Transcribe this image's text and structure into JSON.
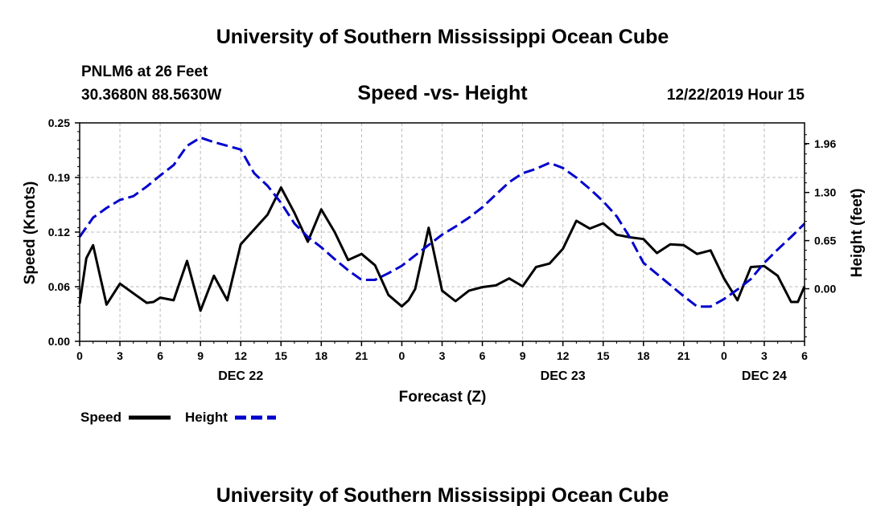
{
  "header": {
    "title": "University of Southern Mississippi Ocean Cube",
    "station": "PNLM6 at 26 Feet",
    "location": "30.3680N 88.5630W",
    "plot_title": "Speed -vs- Height",
    "timestamp": "12/22/2019 Hour 15"
  },
  "footer": {
    "title": "University of Southern Mississippi Ocean Cube"
  },
  "colors": {
    "speed": "#000000",
    "height": "#0000cc",
    "grid": "#bbbbbb"
  },
  "chart_data": {
    "type": "line",
    "title": "Speed -vs- Height",
    "xlabel": "Forecast (Z)",
    "ylabel": "Speed (Knots)",
    "y2label": "Height (feet)",
    "x_range": [
      0,
      54
    ],
    "ylim": [
      0,
      0.25
    ],
    "y2lim": [
      -0.71,
      2.24
    ],
    "x_ticks": [
      0,
      3,
      6,
      9,
      12,
      15,
      18,
      21,
      24,
      27,
      30,
      33,
      36,
      39,
      42,
      45,
      48,
      51,
      54
    ],
    "x_tick_labels": [
      "0",
      "3",
      "6",
      "9",
      "12",
      "15",
      "18",
      "21",
      "0",
      "3",
      "6",
      "9",
      "12",
      "15",
      "18",
      "21",
      "0",
      "3",
      "6"
    ],
    "date_labels": [
      {
        "x": 12,
        "label": "DEC 22"
      },
      {
        "x": 36,
        "label": "DEC 23"
      },
      {
        "x": 51,
        "label": "DEC 24"
      }
    ],
    "y_ticks": [
      0,
      0.0625,
      0.125,
      0.1875,
      0.25
    ],
    "y_tick_labels": [
      "0.00",
      "0.06",
      "0.12",
      "0.19",
      "0.25"
    ],
    "y2_ticks": [
      0.0,
      0.65,
      1.3,
      1.96
    ],
    "y2_tick_labels": [
      "0.00",
      "0.65",
      "1.30",
      "1.96"
    ],
    "grid": true,
    "legend": "bottom-left",
    "series": [
      {
        "name": "Speed",
        "axis": "left",
        "style": "solid",
        "x": [
          0,
          0.5,
          1,
          2,
          3,
          4,
          5,
          5.5,
          6,
          7,
          8,
          9,
          10,
          11,
          12,
          13,
          14,
          15,
          16,
          17,
          18,
          19,
          20,
          21,
          22,
          23,
          24,
          24.5,
          25,
          26,
          27,
          28,
          29,
          30,
          31,
          32,
          33,
          34,
          35,
          36,
          37,
          38,
          39,
          40,
          41,
          42,
          43,
          44,
          45,
          46,
          47,
          48,
          49,
          50,
          51,
          52,
          53,
          53.5,
          54
        ],
        "values": [
          0.043,
          0.095,
          0.11,
          0.042,
          0.066,
          0.055,
          0.044,
          0.045,
          0.05,
          0.047,
          0.092,
          0.035,
          0.075,
          0.047,
          0.111,
          0.128,
          0.145,
          0.176,
          0.147,
          0.114,
          0.151,
          0.125,
          0.093,
          0.1,
          0.087,
          0.053,
          0.04,
          0.047,
          0.06,
          0.13,
          0.058,
          0.046,
          0.058,
          0.062,
          0.064,
          0.072,
          0.063,
          0.085,
          0.089,
          0.106,
          0.138,
          0.129,
          0.135,
          0.122,
          0.119,
          0.117,
          0.101,
          0.111,
          0.11,
          0.1,
          0.104,
          0.072,
          0.047,
          0.085,
          0.086,
          0.075,
          0.045,
          0.045,
          0.063
        ]
      },
      {
        "name": "Height",
        "axis": "right",
        "style": "dashed",
        "x": [
          0,
          1,
          2,
          3,
          4,
          5,
          6,
          7,
          8,
          9,
          10,
          11,
          12,
          13,
          14,
          15,
          16,
          17,
          18,
          19,
          20,
          21,
          22,
          23,
          24,
          25,
          26,
          27,
          28,
          29,
          30,
          31,
          32,
          33,
          34,
          35,
          36,
          37,
          38,
          39,
          40,
          41,
          42,
          43,
          44,
          45,
          46,
          47,
          48,
          49,
          50,
          51,
          52,
          53,
          54
        ],
        "values": [
          0.7,
          0.96,
          1.09,
          1.2,
          1.25,
          1.38,
          1.53,
          1.67,
          1.93,
          2.04,
          1.98,
          1.93,
          1.88,
          1.56,
          1.39,
          1.16,
          0.88,
          0.7,
          0.56,
          0.4,
          0.25,
          0.12,
          0.12,
          0.21,
          0.31,
          0.45,
          0.59,
          0.73,
          0.84,
          0.96,
          1.1,
          1.27,
          1.44,
          1.56,
          1.62,
          1.7,
          1.63,
          1.5,
          1.35,
          1.18,
          0.98,
          0.69,
          0.35,
          0.2,
          0.05,
          -0.1,
          -0.24,
          -0.24,
          -0.14,
          -0.01,
          0.13,
          0.35,
          0.53,
          0.7,
          0.88
        ]
      }
    ]
  }
}
